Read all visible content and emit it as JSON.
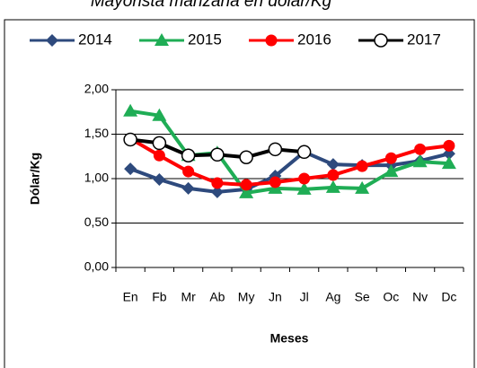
{
  "chart_data": {
    "type": "line",
    "title": "Mayorista manzana en dólar/Kg",
    "x_label": "Meses",
    "y_label": "Dólar/Kg",
    "categories": [
      "En",
      "Fb",
      "Mr",
      "Ab",
      "My",
      "Jn",
      "Jl",
      "Ag",
      "Se",
      "Oc",
      "Nv",
      "Dc"
    ],
    "series": [
      {
        "name": "2014",
        "color": "#2e4a7d",
        "marker": "diamond",
        "values": [
          1.11,
          0.99,
          0.89,
          0.85,
          0.88,
          1.03,
          1.3,
          1.16,
          1.15,
          1.15,
          1.2,
          1.28
        ]
      },
      {
        "name": "2015",
        "color": "#1fad55",
        "marker": "triangle",
        "values": [
          1.76,
          1.71,
          1.26,
          1.29,
          0.84,
          0.89,
          0.88,
          0.9,
          0.89,
          1.08,
          1.19,
          1.17
        ]
      },
      {
        "name": "2016",
        "color": "#ff0000",
        "marker": "circle",
        "values": [
          1.45,
          1.26,
          1.08,
          0.95,
          0.93,
          0.96,
          1.0,
          1.04,
          1.14,
          1.23,
          1.33,
          1.37
        ]
      },
      {
        "name": "2017",
        "color": "#000000",
        "marker": "open-circle",
        "values": [
          1.44,
          1.4,
          1.26,
          1.27,
          1.24,
          1.33,
          1.3,
          null,
          null,
          null,
          null,
          null
        ]
      }
    ],
    "ylim": [
      0,
      2
    ],
    "yticks": [
      {
        "value": 0,
        "label": "0,00"
      },
      {
        "value": 0.5,
        "label": "0,50"
      },
      {
        "value": 1,
        "label": "1,00"
      },
      {
        "value": 1.5,
        "label": "1,50"
      },
      {
        "value": 2,
        "label": "2,00"
      }
    ],
    "grid": true
  }
}
